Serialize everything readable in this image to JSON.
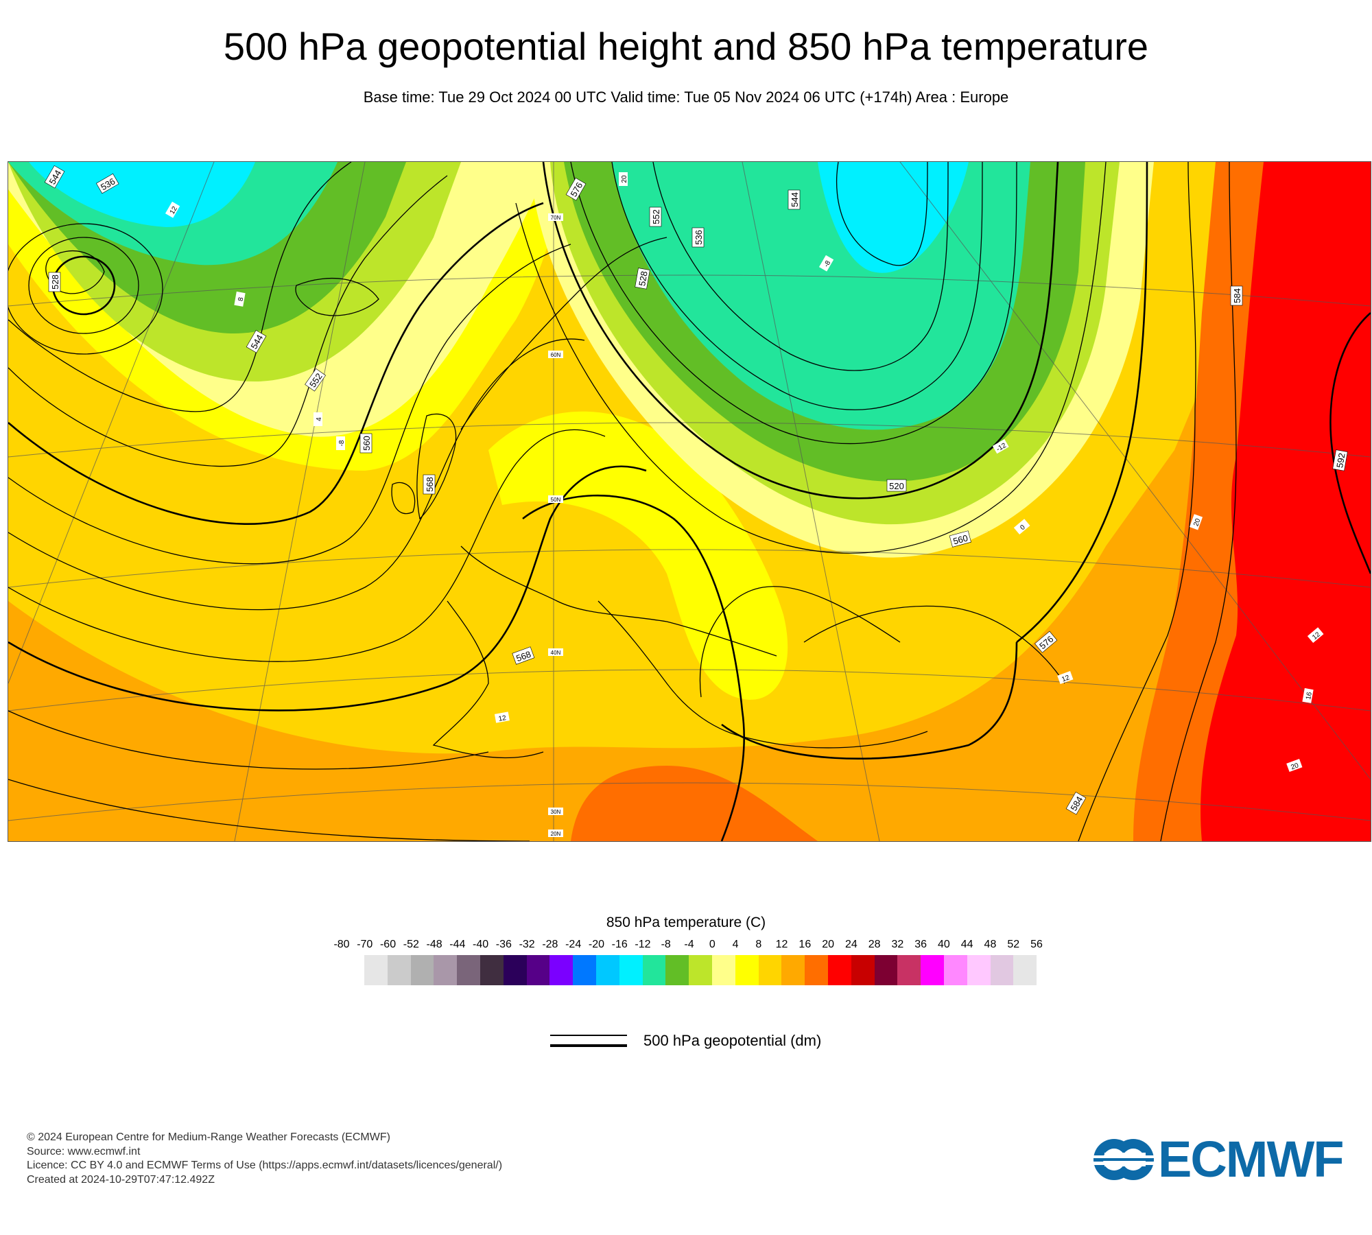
{
  "header": {
    "title": "500 hPa geopotential height and 850 hPa temperature",
    "subtitle": "Base time: Tue 29 Oct 2024 00 UTC Valid time: Tue 05 Nov 2024 06 UTC (+174h) Area : Europe"
  },
  "map": {
    "area": "Europe",
    "contour_labels": [
      "544",
      "536",
      "528",
      "544",
      "552",
      "560",
      "568",
      "576",
      "552",
      "536",
      "528",
      "544",
      "520",
      "560",
      "568",
      "576",
      "584",
      "592",
      "584"
    ],
    "temperature_labels": [
      "12",
      "8",
      "4",
      "-8",
      "12",
      "12",
      "12",
      "16",
      "20",
      "20",
      "20",
      "-8",
      "-12",
      "0"
    ],
    "latitude_labels": [
      "70N",
      "60N",
      "50N",
      "40N",
      "30N",
      "20N"
    ],
    "colors": {
      "cyan": "#00f0ff",
      "turquoise": "#22e59b",
      "green": "#62be26",
      "lime": "#bde52a",
      "paleyellow": "#ffff8a",
      "yellow": "#ffff00",
      "gold": "#ffd500",
      "orange": "#ffa900",
      "darkorange": "#ff6e00",
      "red": "#ff0000",
      "darkred": "#c80000"
    }
  },
  "legend": {
    "title": "850 hPa temperature (C)",
    "ticks": [
      "-80",
      "-70",
      "-60",
      "-52",
      "-48",
      "-44",
      "-40",
      "-36",
      "-32",
      "-28",
      "-24",
      "-20",
      "-16",
      "-12",
      "-8",
      "-4",
      "0",
      "4",
      "8",
      "12",
      "16",
      "20",
      "24",
      "28",
      "32",
      "36",
      "40",
      "44",
      "48",
      "52",
      "56"
    ],
    "colors": [
      "#e6e6e6",
      "#cbcbcb",
      "#b0b0b0",
      "#a997a9",
      "#7a657a",
      "#402e40",
      "#2b005a",
      "#560088",
      "#7b00ff",
      "#0078ff",
      "#00c8ff",
      "#00f0ff",
      "#22e59b",
      "#62be26",
      "#bde52a",
      "#ffff8a",
      "#ffff00",
      "#ffd500",
      "#ffa900",
      "#ff6e00",
      "#ff0000",
      "#c80000",
      "#7d0032",
      "#c83264",
      "#ff00ff",
      "#ff88ff",
      "#ffc8ff",
      "#e1c8e1",
      "#e6e6e6"
    ],
    "line_label": "500 hPa geopotential (dm)"
  },
  "footer": {
    "line1": "© 2024 European Centre for Medium-Range Weather Forecasts (ECMWF)",
    "line2": "Source: www.ecmwf.int",
    "line3": "Licence: CC BY 4.0 and ECMWF Terms of Use (https://apps.ecmwf.int/datasets/licences/general/)",
    "line4": "Created at 2024-10-29T07:47:12.492Z"
  },
  "logo": {
    "text": "ECMWF"
  }
}
